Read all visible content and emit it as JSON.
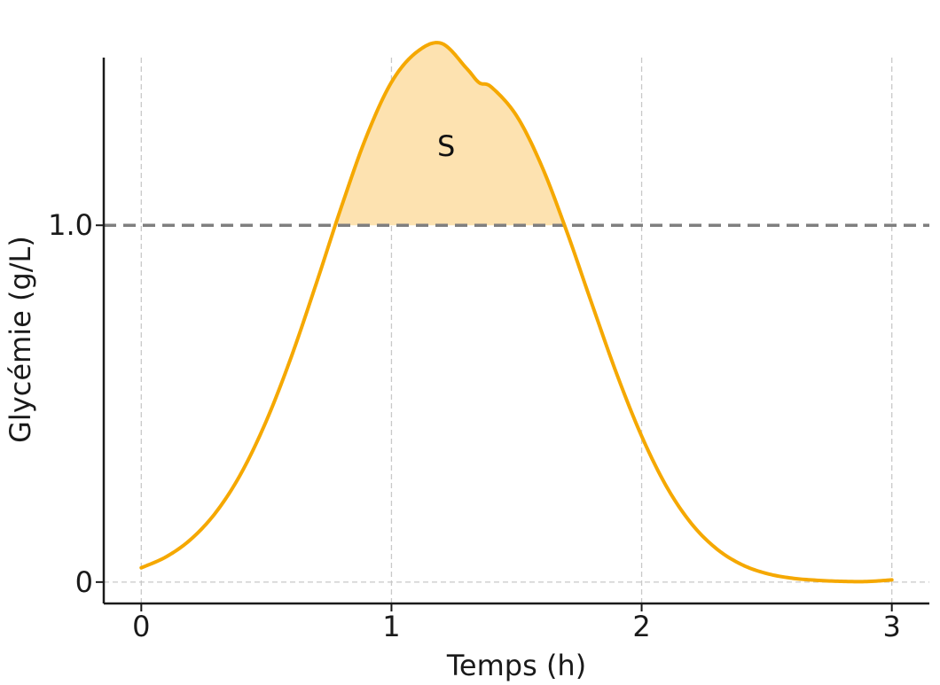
{
  "chart_data": {
    "type": "line",
    "title": "",
    "xlabel": "Temps (h)",
    "ylabel": "Glycémie (g/L)",
    "xlim": [
      -0.15,
      3.15
    ],
    "ylim": [
      -0.06,
      1.47
    ],
    "x_ticks": [
      {
        "value": 0,
        "label": "0"
      },
      {
        "value": 1,
        "label": "1"
      },
      {
        "value": 2,
        "label": "2"
      },
      {
        "value": 3,
        "label": "3"
      }
    ],
    "y_ticks": [
      {
        "value": 0,
        "label": "0"
      },
      {
        "value": 1,
        "label": "1.0"
      }
    ],
    "grid": {
      "x": true,
      "y_zero": true,
      "style": "dashed"
    },
    "series": [
      {
        "x": [
          0,
          0.1,
          0.2,
          0.3,
          0.4,
          0.5,
          0.6,
          0.7,
          0.8,
          0.9,
          1.0,
          1.1,
          1.2,
          1.3,
          1.35,
          1.4,
          1.5,
          1.6,
          1.7,
          1.8,
          1.9,
          2.0,
          2.1,
          2.2,
          2.3,
          2.4,
          2.5,
          2.6,
          2.7,
          2.8,
          2.9,
          3.0
        ],
        "y": [
          0.04,
          0.071,
          0.121,
          0.197,
          0.306,
          0.452,
          0.632,
          0.838,
          1.052,
          1.249,
          1.401,
          1.485,
          1.51,
          1.44,
          1.4,
          1.387,
          1.307,
          1.167,
          0.984,
          0.782,
          0.584,
          0.409,
          0.267,
          0.163,
          0.093,
          0.049,
          0.024,
          0.011,
          0.005,
          0.002,
          0.0015,
          0.006
        ],
        "color": "#F5A800"
      }
    ],
    "threshold": {
      "y": 1.0,
      "color": "#7f7f7f",
      "style": "dashed"
    },
    "shaded_region": {
      "above": 1.0,
      "x_range": [
        0.94,
        1.76
      ],
      "color": "#FDE2B0",
      "label": "S"
    }
  }
}
